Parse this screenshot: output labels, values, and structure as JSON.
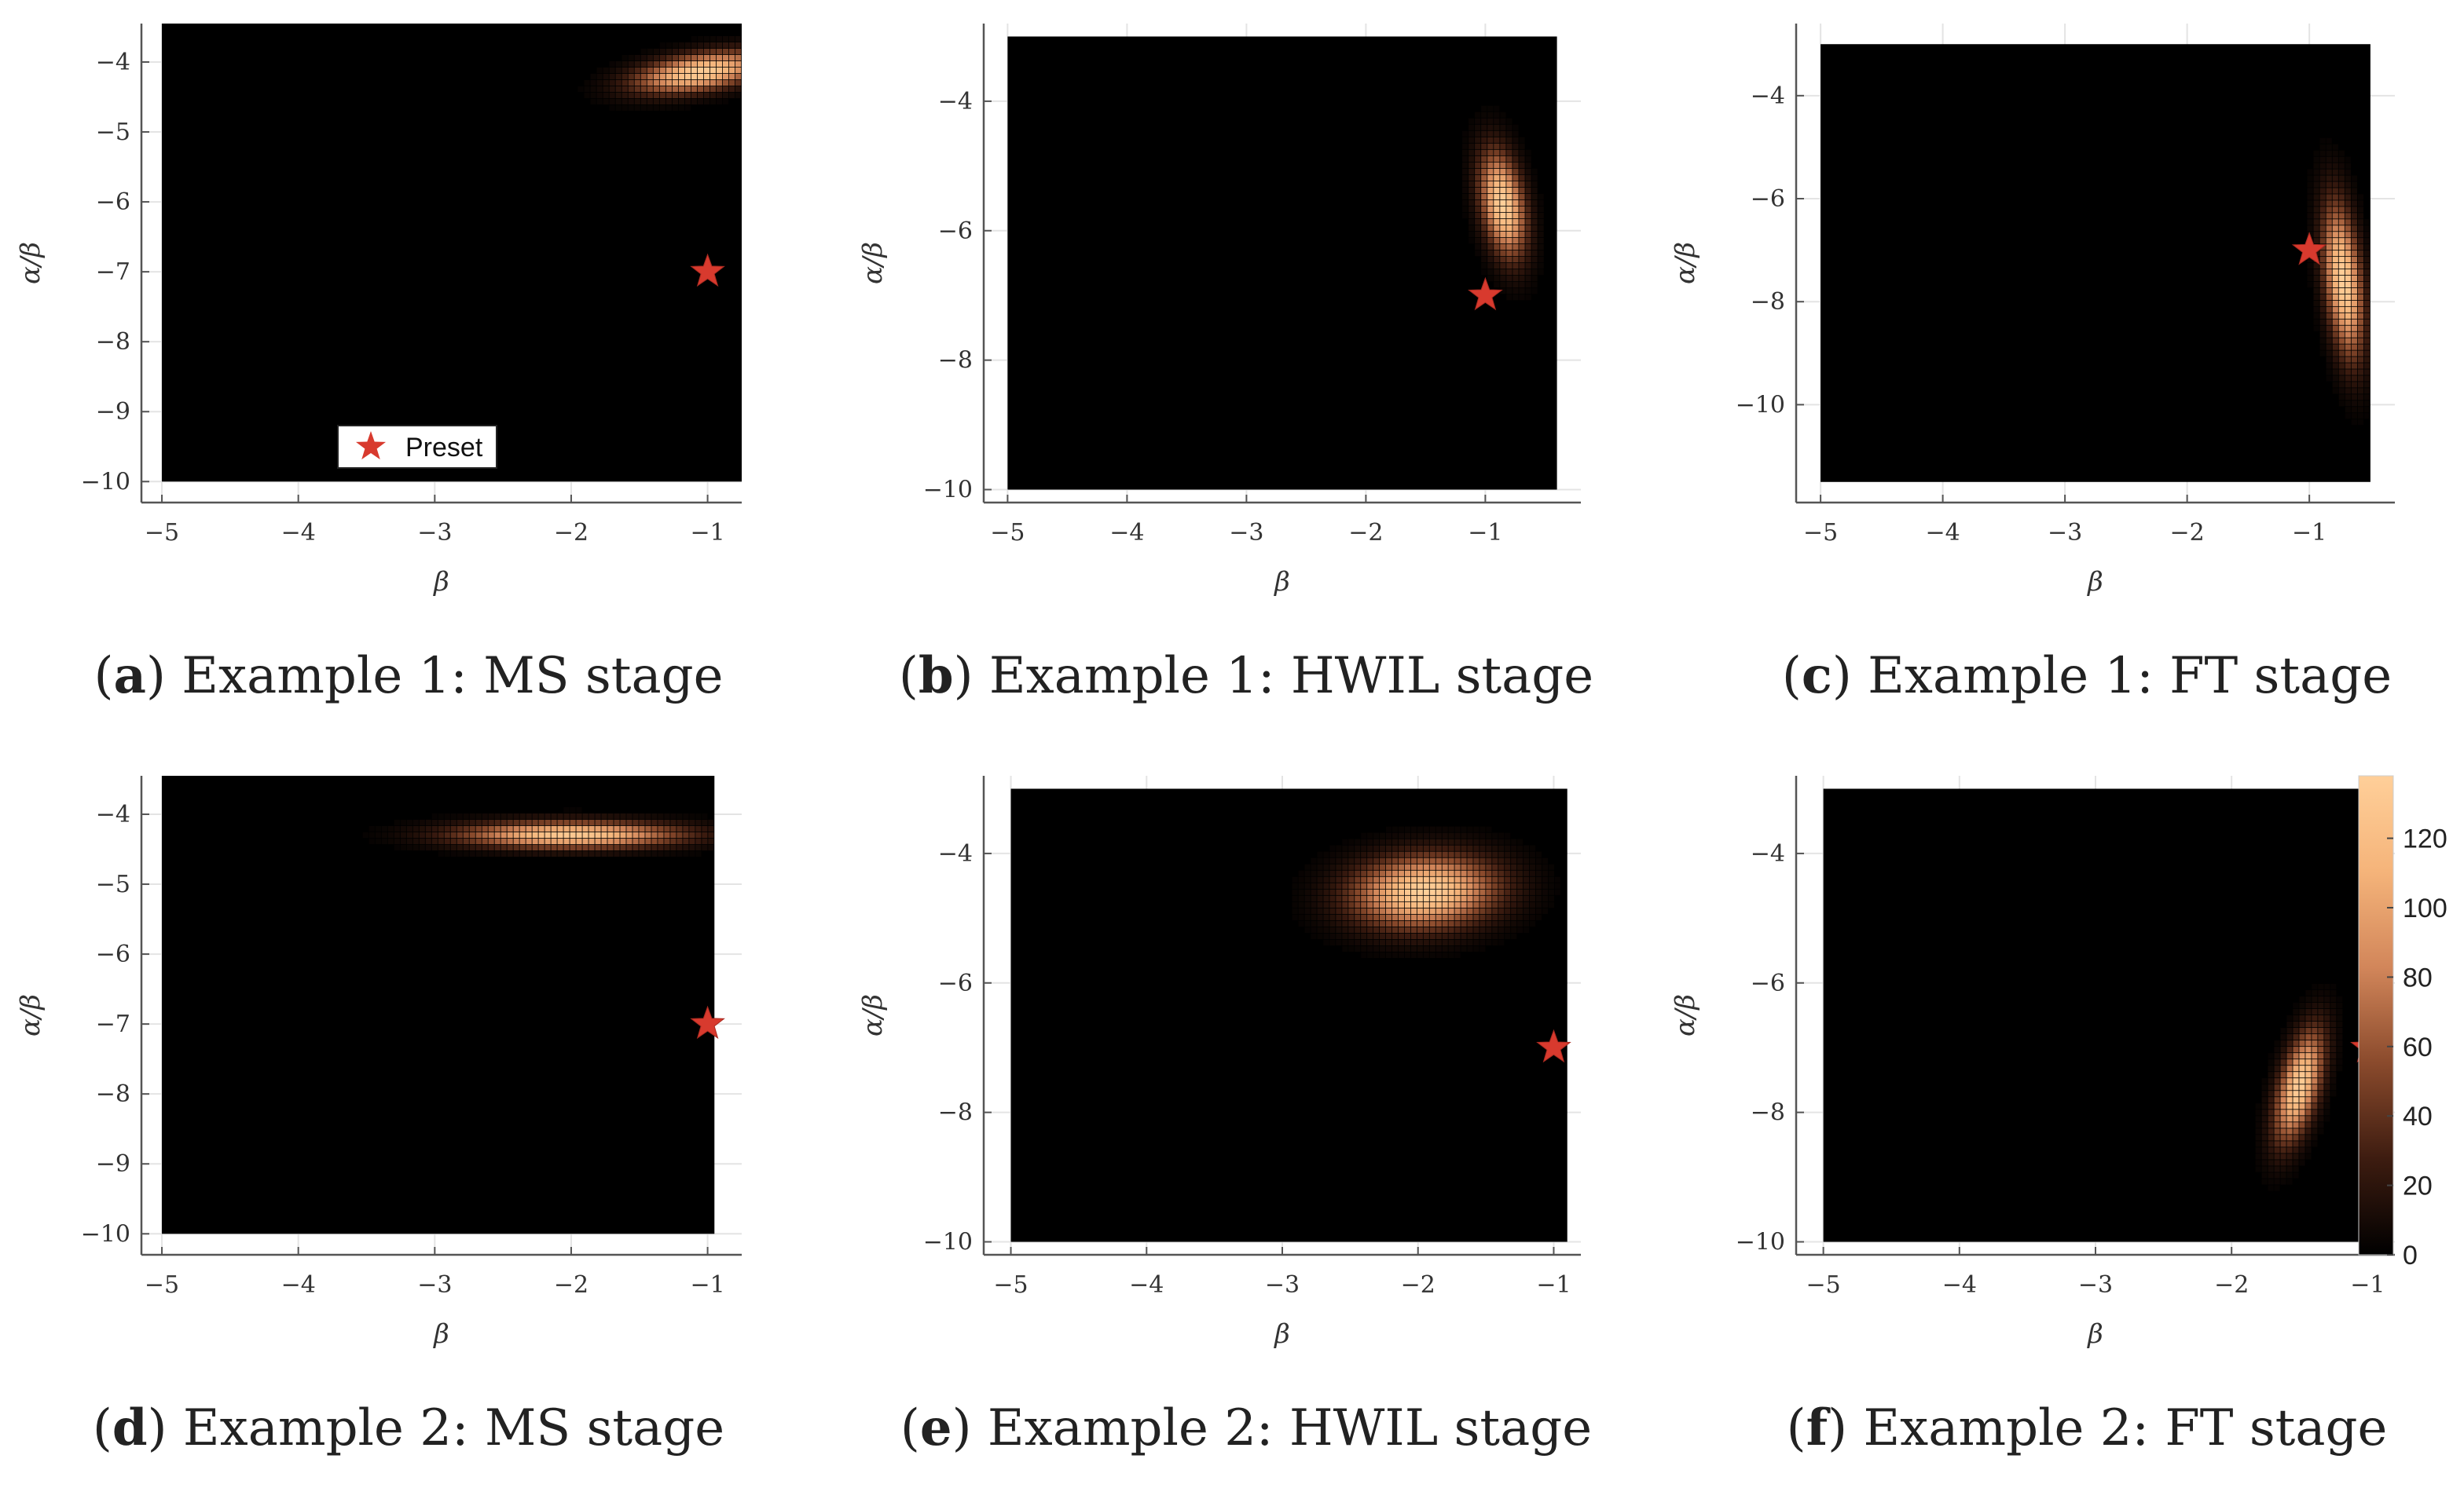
{
  "figure": {
    "colorbar_ticks": [
      "0",
      "20",
      "40",
      "60",
      "80",
      "100",
      "120"
    ],
    "colorbar_range": [
      0,
      138
    ],
    "colormap_colors": [
      "#000000",
      "#3d1c10",
      "#8a4a2c",
      "#d2865a",
      "#f5b47a",
      "#ffcf99"
    ]
  },
  "chart_data": [
    {
      "type": "heatmap",
      "caption_letter": "a",
      "caption_text": "Example 1: MS stage",
      "xlabel": "β",
      "ylabel": "α/β",
      "xlim": [
        -5.15,
        -0.75
      ],
      "ylim": [
        -10.3,
        -3.45
      ],
      "image_extent": {
        "x": [
          -5.0,
          -0.75
        ],
        "y": [
          -10.0,
          -3.45
        ]
      },
      "xticks": [
        -5,
        -4,
        -3,
        -2,
        -1
      ],
      "yticks": [
        -10,
        -9,
        -8,
        -7,
        -6,
        -5,
        -4
      ],
      "peak": {
        "beta": -1.05,
        "alpha_over_beta": -4.15,
        "sigma_x": 0.32,
        "sigma_y": 0.2,
        "rho": 0.45,
        "max_count": 135
      },
      "preset": {
        "beta": -1.0,
        "alpha_over_beta": -7.0
      },
      "legend": {
        "label": "Preset",
        "position": "bottom-center"
      }
    },
    {
      "type": "heatmap",
      "caption_letter": "b",
      "caption_text": "Example 1: HWIL stage",
      "xlabel": "β",
      "ylabel": "α/β",
      "xlim": [
        -5.2,
        -0.2
      ],
      "ylim": [
        -10.2,
        -2.8
      ],
      "image_extent": {
        "x": [
          -5.0,
          -0.4
        ],
        "y": [
          -10.0,
          -3.0
        ]
      },
      "xticks": [
        -5,
        -4,
        -3,
        -2,
        -1
      ],
      "yticks": [
        -10,
        -8,
        -6,
        -4
      ],
      "peak": {
        "beta": -0.85,
        "alpha_over_beta": -5.6,
        "sigma_x": 0.13,
        "sigma_y": 0.55,
        "rho": -0.35,
        "max_count": 138
      },
      "preset": {
        "beta": -1.0,
        "alpha_over_beta": -7.0
      }
    },
    {
      "type": "heatmap",
      "caption_letter": "c",
      "caption_text": "Example 1: FT stage",
      "xlabel": "β",
      "ylabel": "α/β",
      "xlim": [
        -5.2,
        -0.3
      ],
      "ylim": [
        -11.9,
        -2.6
      ],
      "image_extent": {
        "x": [
          -5.0,
          -0.5
        ],
        "y": [
          -11.5,
          -3.0
        ]
      },
      "xticks": [
        -5,
        -4,
        -3,
        -2,
        -1
      ],
      "yticks": [
        -10,
        -8,
        -6,
        -4
      ],
      "peak": {
        "beta": -0.72,
        "alpha_over_beta": -7.6,
        "sigma_x": 0.11,
        "sigma_y": 1.0,
        "rho": -0.4,
        "max_count": 138
      },
      "preset": {
        "beta": -1.0,
        "alpha_over_beta": -7.0
      }
    },
    {
      "type": "heatmap",
      "caption_letter": "d",
      "caption_text": "Example 2: MS stage",
      "xlabel": "β",
      "ylabel": "α/β",
      "xlim": [
        -5.15,
        -0.75
      ],
      "ylim": [
        -10.3,
        -3.45
      ],
      "image_extent": {
        "x": [
          -5.0,
          -0.95
        ],
        "y": [
          -10.0,
          -3.45
        ]
      },
      "xticks": [
        -5,
        -4,
        -3,
        -2,
        -1
      ],
      "yticks": [
        -10,
        -9,
        -8,
        -7,
        -6,
        -5,
        -4
      ],
      "peak": {
        "beta": -2.0,
        "alpha_over_beta": -4.3,
        "sigma_x": 0.55,
        "sigma_y": 0.13,
        "rho": 0.0,
        "max_count": 130
      },
      "preset": {
        "beta": -1.0,
        "alpha_over_beta": -7.0
      }
    },
    {
      "type": "heatmap",
      "caption_letter": "e",
      "caption_text": "Example 2: HWIL stage",
      "xlabel": "β",
      "ylabel": "α/β",
      "xlim": [
        -5.2,
        -0.8
      ],
      "ylim": [
        -10.2,
        -2.8
      ],
      "image_extent": {
        "x": [
          -5.0,
          -0.9
        ],
        "y": [
          -10.0,
          -3.0
        ]
      },
      "xticks": [
        -5,
        -4,
        -3,
        -2,
        -1
      ],
      "yticks": [
        -10,
        -8,
        -6,
        -4
      ],
      "peak": {
        "beta": -1.95,
        "alpha_over_beta": -4.6,
        "sigma_x": 0.36,
        "sigma_y": 0.38,
        "rho": 0.1,
        "max_count": 138
      },
      "preset": {
        "beta": -1.0,
        "alpha_over_beta": -7.0
      }
    },
    {
      "type": "heatmap",
      "caption_letter": "f",
      "caption_text": "Example 2: FT stage",
      "xlabel": "β",
      "ylabel": "α/β",
      "xlim": [
        -5.2,
        -0.8
      ],
      "ylim": [
        -10.2,
        -2.8
      ],
      "image_extent": {
        "x": [
          -5.0,
          -0.95
        ],
        "y": [
          -10.0,
          -3.0
        ]
      },
      "xticks": [
        -5,
        -4,
        -3,
        -2,
        -1
      ],
      "yticks": [
        -10,
        -8,
        -6,
        -4
      ],
      "peak": {
        "beta": -1.5,
        "alpha_over_beta": -7.6,
        "sigma_x": 0.12,
        "sigma_y": 0.58,
        "rho": 0.55,
        "max_count": 136
      },
      "preset": {
        "beta": -1.0,
        "alpha_over_beta": -7.0
      }
    }
  ]
}
